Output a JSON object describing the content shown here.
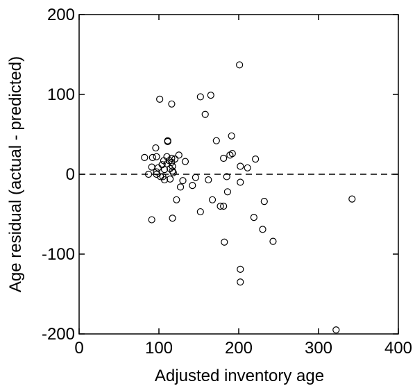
{
  "chart_data": {
    "type": "scatter",
    "xlabel": "Adjusted inventory age",
    "ylabel": "Age residual (actual - predicted)",
    "xlim": [
      0,
      400
    ],
    "ylim": [
      -200,
      200
    ],
    "xticks": [
      0,
      100,
      200,
      300,
      400
    ],
    "yticks": [
      -200,
      -100,
      0,
      100,
      200
    ],
    "xtick_labels": [
      "0",
      "100",
      "200",
      "300",
      "400"
    ],
    "ytick_labels": [
      "-200",
      "-100",
      "0",
      "100",
      "200"
    ],
    "grid": false,
    "reference_line": {
      "y": 0,
      "style": "dashed"
    },
    "marker": "open-circle",
    "series": [
      {
        "points": [
          [
            82,
            21
          ],
          [
            87,
            0
          ],
          [
            91,
            9
          ],
          [
            91,
            -57
          ],
          [
            92,
            21
          ],
          [
            96,
            33
          ],
          [
            97,
            3
          ],
          [
            97,
            22
          ],
          [
            97,
            0
          ],
          [
            99,
            8
          ],
          [
            101,
            94
          ],
          [
            102,
            -3
          ],
          [
            104,
            12
          ],
          [
            105,
            -3
          ],
          [
            106,
            17
          ],
          [
            107,
            -7
          ],
          [
            107,
            6
          ],
          [
            110,
            22
          ],
          [
            110,
            13
          ],
          [
            111,
            42
          ],
          [
            111,
            41
          ],
          [
            113,
            17
          ],
          [
            114,
            7
          ],
          [
            114,
            -6
          ],
          [
            116,
            88
          ],
          [
            116,
            15
          ],
          [
            116,
            20
          ],
          [
            117,
            10
          ],
          [
            117,
            4
          ],
          [
            117,
            -55
          ],
          [
            118,
            2
          ],
          [
            120,
            19
          ],
          [
            122,
            -32
          ],
          [
            125,
            24
          ],
          [
            127,
            -16
          ],
          [
            130,
            -8
          ],
          [
            133,
            16
          ],
          [
            142,
            -14
          ],
          [
            146,
            -4
          ],
          [
            152,
            97
          ],
          [
            152,
            -47
          ],
          [
            158,
            75
          ],
          [
            162,
            -7
          ],
          [
            165,
            99
          ],
          [
            167,
            -32
          ],
          [
            172,
            42
          ],
          [
            177,
            -40
          ],
          [
            181,
            -40
          ],
          [
            181,
            20
          ],
          [
            182,
            -85
          ],
          [
            185,
            -3
          ],
          [
            186,
            -22
          ],
          [
            189,
            24
          ],
          [
            191,
            48
          ],
          [
            192,
            26
          ],
          [
            201,
            137
          ],
          [
            202,
            10
          ],
          [
            202,
            -10
          ],
          [
            202,
            -119
          ],
          [
            202,
            -135
          ],
          [
            211,
            8
          ],
          [
            219,
            -54
          ],
          [
            221,
            19
          ],
          [
            230,
            -69
          ],
          [
            232,
            -34
          ],
          [
            243,
            -84
          ],
          [
            322,
            -195
          ],
          [
            342,
            -31
          ]
        ]
      }
    ]
  }
}
